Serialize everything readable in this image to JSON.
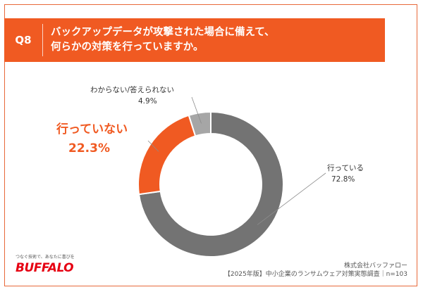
{
  "header": {
    "q_label": "Q8",
    "question_line1": "バックアップデータが攻撃された場合に備えて、",
    "question_line2": "何らかの対策を行っていますか。"
  },
  "chart_data": {
    "type": "pie",
    "donut": true,
    "categories": [
      "行っている",
      "行っていない",
      "わからない/答えられない"
    ],
    "values": [
      72.8,
      22.3,
      4.9
    ],
    "value_labels": [
      "72.8%",
      "22.3%",
      "4.9%"
    ],
    "colors": [
      "#737373",
      "#f05a22",
      "#a6a6a6"
    ]
  },
  "footer": {
    "tagline": "つなぐ技術で、あなたに喜びを",
    "logo": "BUFFALO",
    "company": "株式会社バッファロー",
    "source": "【2025年版】中小企業のランサムウェア対策実態調査｜n=103"
  }
}
